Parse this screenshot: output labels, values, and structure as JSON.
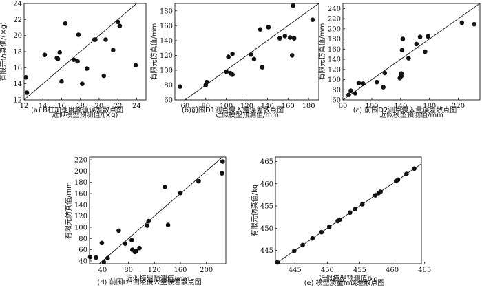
{
  "chart_data": [
    {
      "type": "scatter",
      "id": "a",
      "caption": "(a) B柱加速度峰值误差散点图",
      "xlabel": "近似模型预测值/(×g)",
      "ylabel": "有限元仿真值/(×g)",
      "xlim": [
        12,
        25
      ],
      "ylim": [
        12,
        24
      ],
      "xticks": [
        12,
        14,
        16,
        18,
        20,
        22,
        24
      ],
      "yticks": [
        12,
        14,
        16,
        18,
        20,
        22,
        24
      ],
      "reference_line": "y = x",
      "points": [
        [
          12.2,
          14.8
        ],
        [
          12.3,
          12.9
        ],
        [
          14.2,
          17.6
        ],
        [
          15.5,
          17.2
        ],
        [
          15.6,
          17.1
        ],
        [
          15.8,
          17.9
        ],
        [
          16.0,
          14.3
        ],
        [
          16.4,
          21.5
        ],
        [
          17.3,
          17.0
        ],
        [
          17.7,
          16.8
        ],
        [
          17.8,
          20.1
        ],
        [
          18.2,
          14.0
        ],
        [
          18.7,
          15.9
        ],
        [
          19.5,
          19.5
        ],
        [
          19.6,
          19.5
        ],
        [
          20.5,
          15.0
        ],
        [
          20.7,
          19.5
        ],
        [
          21.5,
          18.2
        ],
        [
          22.0,
          21.7
        ],
        [
          22.2,
          21.2
        ],
        [
          23.9,
          16.3
        ]
      ]
    },
    {
      "type": "scatter",
      "id": "b",
      "caption": "(b)前围D1测点侵入量误差散点图",
      "xlabel": "近似模型预测值/mm",
      "ylabel": "有限元仿真值/mm",
      "xlim": [
        50,
        190
      ],
      "ylim": [
        60,
        190
      ],
      "xticks": [
        60,
        80,
        100,
        120,
        140,
        160,
        180
      ],
      "yticks": [
        60,
        80,
        100,
        120,
        140,
        160,
        180
      ],
      "reference_line": "y = x",
      "points": [
        [
          55,
          78
        ],
        [
          80,
          80
        ],
        [
          81,
          84
        ],
        [
          100,
          98
        ],
        [
          102,
          118
        ],
        [
          104,
          96
        ],
        [
          106,
          94
        ],
        [
          106,
          122
        ],
        [
          124,
          121
        ],
        [
          127,
          115
        ],
        [
          133,
          155
        ],
        [
          135,
          104
        ],
        [
          141,
          158
        ],
        [
          152,
          143
        ],
        [
          157,
          146
        ],
        [
          162,
          144
        ],
        [
          164,
          120
        ],
        [
          165,
          187
        ],
        [
          166,
          143
        ],
        [
          184,
          168
        ]
      ]
    },
    {
      "type": "scatter",
      "id": "c",
      "caption": "(c) 前围D2测点侵入量误差散点图",
      "xlabel": "近似模型预测值/mm",
      "ylabel": "有限元仿真值/mm",
      "xlim": [
        60,
        250
      ],
      "ylim": [
        60,
        250
      ],
      "xticks": [
        60,
        100,
        140,
        180,
        220
      ],
      "yticks": [
        60,
        80,
        100,
        120,
        140,
        160,
        180,
        200,
        220,
        240
      ],
      "reference_line": "y = x",
      "points": [
        [
          68,
          70
        ],
        [
          71,
          78
        ],
        [
          77,
          73
        ],
        [
          82,
          93
        ],
        [
          88,
          92
        ],
        [
          107,
          95
        ],
        [
          116,
          85
        ],
        [
          118,
          113
        ],
        [
          139,
          103
        ],
        [
          141,
          107
        ],
        [
          141,
          112
        ],
        [
          142,
          158
        ],
        [
          143,
          180
        ],
        [
          151,
          142
        ],
        [
          162,
          170
        ],
        [
          167,
          184
        ],
        [
          174,
          155
        ],
        [
          178,
          185
        ],
        [
          225,
          212
        ],
        [
          242,
          209
        ]
      ]
    },
    {
      "type": "scatter",
      "id": "d",
      "caption": "(d) 前围D3测点侵入量误差散点图",
      "xlabel": "近似模型预测值/mm",
      "ylabel": "有限元仿真值/mm",
      "xlim": [
        20,
        230
      ],
      "ylim": [
        35,
        225
      ],
      "xticks": [
        40,
        80,
        120,
        160,
        200
      ],
      "yticks": [
        40,
        60,
        80,
        100,
        120,
        140,
        160,
        180,
        200,
        220
      ],
      "reference_line": "y = x",
      "points": [
        [
          21,
          47
        ],
        [
          30,
          46
        ],
        [
          39,
          72
        ],
        [
          42,
          38
        ],
        [
          48,
          45
        ],
        [
          65,
          94
        ],
        [
          75,
          71
        ],
        [
          85,
          77
        ],
        [
          86,
          60
        ],
        [
          90,
          56
        ],
        [
          92,
          58
        ],
        [
          97,
          63
        ],
        [
          109,
          103
        ],
        [
          111,
          111
        ],
        [
          136,
          172
        ],
        [
          141,
          104
        ],
        [
          160,
          161
        ],
        [
          188,
          182
        ],
        [
          224,
          196
        ],
        [
          225,
          217
        ]
      ]
    },
    {
      "type": "scatter",
      "id": "e",
      "caption": "(e) 模型质量m误差散点图",
      "xlabel": "近似模型预测值/kg",
      "ylabel": "有限元仿真值/kg",
      "xlim": [
        442,
        464.5
      ],
      "ylim": [
        442,
        466
      ],
      "xticks": [
        445,
        450,
        455,
        460,
        465
      ],
      "yticks": [
        445,
        450,
        455,
        460,
        465
      ],
      "reference_line": "y = x",
      "points": [
        [
          442.3,
          442.3
        ],
        [
          444.9,
          444.9
        ],
        [
          446.2,
          446.2
        ],
        [
          447.7,
          447.7
        ],
        [
          449.1,
          449.1
        ],
        [
          450.3,
          450.3
        ],
        [
          451.6,
          451.6
        ],
        [
          451.9,
          451.9
        ],
        [
          453.5,
          453.5
        ],
        [
          454.3,
          454.3
        ],
        [
          455.4,
          455.4
        ],
        [
          457.4,
          457.4
        ],
        [
          457.9,
          457.9
        ],
        [
          458.2,
          458.2
        ],
        [
          460.6,
          460.6
        ],
        [
          460.9,
          460.9
        ],
        [
          462.2,
          462.2
        ],
        [
          463.4,
          463.4
        ]
      ]
    }
  ]
}
